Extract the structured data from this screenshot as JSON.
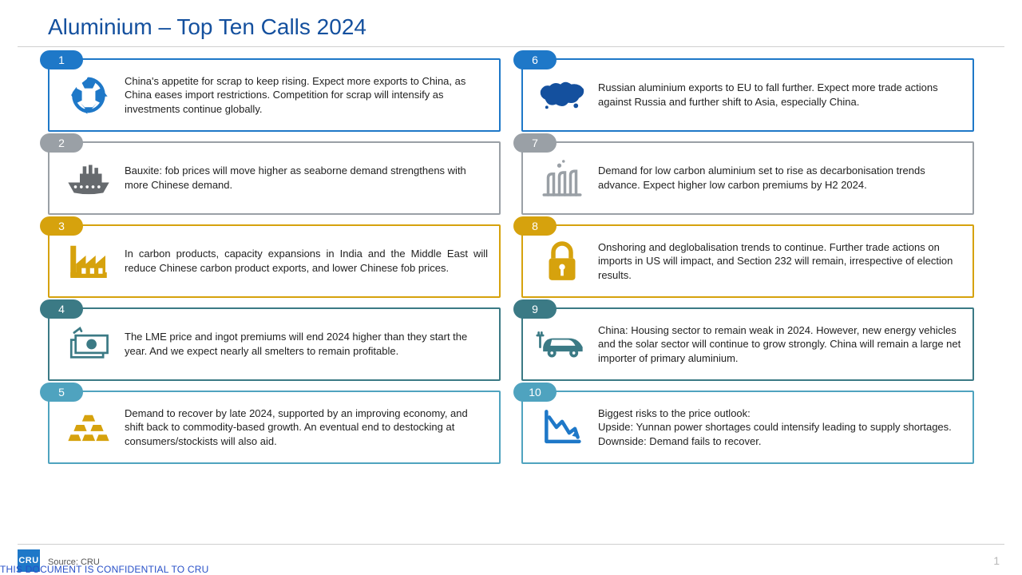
{
  "title": "Aluminium – Top Ten Calls 2024",
  "source_label": "Source: CRU",
  "logo_text": "CRU",
  "confidential": "THIS DOCUMENT IS CONFIDENTIAL TO CRU",
  "page_number": "1",
  "palette": {
    "blue": {
      "border": "#1e78c8",
      "badge": "#1e78c8",
      "icon": "#1e78c8"
    },
    "gray": {
      "border": "#9aa0a6",
      "badge": "#9aa0a6",
      "icon": "#9aa0a6"
    },
    "gold": {
      "border": "#d6a20d",
      "badge": "#d6a20d",
      "icon": "#d6a20d"
    },
    "teal": {
      "border": "#3b7a85",
      "badge": "#3b7a85",
      "icon": "#3b7a85"
    },
    "ltblue": {
      "border": "#4fa3bf",
      "badge": "#4fa3bf",
      "icon": "#d6a20d"
    }
  },
  "items": [
    {
      "n": "1",
      "color": "blue",
      "icon": "recycle",
      "icon_color": "#1e78c8",
      "text": "China's appetite for scrap to keep rising.  Expect more exports to China, as China eases import restrictions. Competition for scrap will intensify as investments continue globally."
    },
    {
      "n": "2",
      "color": "gray",
      "icon": "ship",
      "icon_color": "#666a6e",
      "text": "Bauxite: fob prices will move higher as seaborne demand strengthens with more Chinese demand."
    },
    {
      "n": "3",
      "color": "gold",
      "icon": "factory",
      "icon_color": "#d6a20d",
      "text": "In carbon products, capacity expansions in India and the Middle East will reduce Chinese carbon product exports, and lower Chinese fob prices.",
      "justify": true
    },
    {
      "n": "4",
      "color": "teal",
      "icon": "cash",
      "icon_color": "#3b7a85",
      "text": "The LME price and ingot premiums will end 2024 higher than they start the year.  And we expect nearly all smelters to remain profitable."
    },
    {
      "n": "5",
      "color": "ltblue",
      "icon": "bars",
      "icon_color": "#d6a20d",
      "text": "Demand to recover by late 2024, supported by an improving economy, and shift back to commodity-based growth. An eventual end to destocking at consumers/stockists will also aid."
    },
    {
      "n": "6",
      "color": "blue",
      "icon": "map",
      "icon_color": "#14509e",
      "text": "Russian aluminium exports to EU to fall further.  Expect more trade actions against Russia and further shift to Asia, especially China."
    },
    {
      "n": "7",
      "color": "gray",
      "icon": "plant",
      "icon_color": "#9aa0a6",
      "text": "Demand for low carbon aluminium set to rise as decarbonisation trends advance.  Expect higher low carbon premiums by H2 2024."
    },
    {
      "n": "8",
      "color": "gold",
      "icon": "lock",
      "icon_color": "#d6a20d",
      "text": "Onshoring and deglobalisation trends to continue.  Further trade actions on imports in US will impact, and Section 232 will remain, irrespective of election results."
    },
    {
      "n": "9",
      "color": "teal",
      "icon": "ev",
      "icon_color": "#3b7a85",
      "text": "China:  Housing sector to remain weak in 2024.   However, new energy vehicles and the solar sector will continue to grow strongly. China will remain a large net importer of primary aluminium."
    },
    {
      "n": "10",
      "color": "ltblue",
      "icon": "downchart",
      "icon_color": "#1e78c8",
      "text": "Biggest risks to the price outlook:\nUpside: Yunnan power shortages could intensify leading to supply shortages.\nDownside: Demand fails to recover."
    }
  ]
}
